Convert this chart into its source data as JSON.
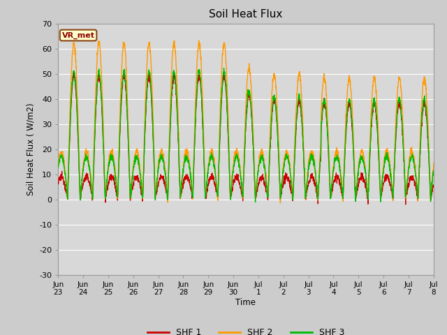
{
  "title": "Soil Heat Flux",
  "ylabel": "Soil Heat Flux ( W/m2)",
  "xlabel": "Time",
  "annotation": "VR_met",
  "ylim": [
    -30,
    70
  ],
  "legend_labels": [
    "SHF 1",
    "SHF 2",
    "SHF 3"
  ],
  "legend_colors": [
    "#cc0000",
    "#ff9900",
    "#00bb00"
  ],
  "line_colors": [
    "#cc0000",
    "#ff9900",
    "#00bb00"
  ],
  "x_tick_labels": [
    "Jun\n23",
    "Jun\n24",
    "Jun\n25",
    "Jun\n26",
    "Jun\n27",
    "Jun\n28",
    "Jun\n29",
    "Jun\n30",
    "Jul\n1",
    "Jul\n2",
    "Jul\n3",
    "Jul\n4",
    "Jul\n5",
    "Jul\n6",
    "Jul\n7",
    "Jul\n8"
  ],
  "yticks": [
    -30,
    -20,
    -10,
    0,
    10,
    20,
    30,
    40,
    50,
    60,
    70
  ],
  "fig_bg": "#cccccc",
  "ax_bg": "#d8d8d8",
  "grid_color": "#ffffff"
}
